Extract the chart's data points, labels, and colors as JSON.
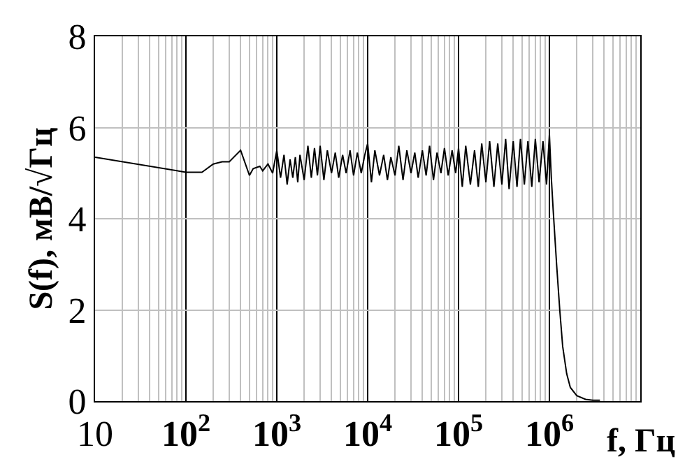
{
  "chart_data": {
    "type": "line",
    "xlabel": "f, Гц",
    "ylabel": "S(f), мВ/√Гц",
    "x": [
      10,
      100,
      150,
      200,
      250,
      300,
      400,
      500,
      550,
      650,
      700,
      800,
      900,
      1000,
      1100,
      1200,
      1300,
      1400,
      1500,
      1600,
      1700,
      1800,
      2000,
      2200,
      2400,
      2600,
      2800,
      3000,
      3300,
      3600,
      4000,
      4400,
      4800,
      5300,
      5800,
      6400,
      7000,
      7700,
      8500,
      9300,
      10000,
      11000,
      12000,
      13500,
      15000,
      16500,
      18000,
      20000,
      22000,
      24500,
      27000,
      30000,
      33000,
      36000,
      40000,
      44000,
      48000,
      53000,
      58000,
      64000,
      70000,
      77000,
      85000,
      93000,
      100000,
      110000,
      120000,
      135000,
      150000,
      165000,
      180000,
      200000,
      220000,
      245000,
      270000,
      300000,
      330000,
      360000,
      400000,
      440000,
      480000,
      530000,
      580000,
      640000,
      700000,
      770000,
      850000,
      930000,
      1000000,
      1050000,
      1100000,
      1200000,
      1300000,
      1400000,
      1550000,
      1700000,
      2000000,
      2500000,
      3000000,
      3600000
    ],
    "series": [
      {
        "color": "#000000",
        "values": [
          5.35,
          5.02,
          5.02,
          5.2,
          5.25,
          5.25,
          5.5,
          4.95,
          5.1,
          5.15,
          5.05,
          5.2,
          5.0,
          5.5,
          4.9,
          5.4,
          4.75,
          5.3,
          4.9,
          5.35,
          4.8,
          5.4,
          4.85,
          5.6,
          4.9,
          5.55,
          4.95,
          5.6,
          4.85,
          5.5,
          5.0,
          5.45,
          4.9,
          5.4,
          5.0,
          5.5,
          4.95,
          5.45,
          5.0,
          5.4,
          5.65,
          4.8,
          5.5,
          4.95,
          5.4,
          4.85,
          5.35,
          4.95,
          5.6,
          4.85,
          5.5,
          5.0,
          5.45,
          4.9,
          5.5,
          4.95,
          5.6,
          4.85,
          5.45,
          5.0,
          5.55,
          4.95,
          5.5,
          5.0,
          5.55,
          4.7,
          5.6,
          4.75,
          5.5,
          4.7,
          5.65,
          4.8,
          5.7,
          4.7,
          5.65,
          4.75,
          5.75,
          4.65,
          5.7,
          4.7,
          5.75,
          4.75,
          5.7,
          4.7,
          5.75,
          4.8,
          5.7,
          4.75,
          5.85,
          4.9,
          4.2,
          3.0,
          2.0,
          1.2,
          0.6,
          0.3,
          0.12,
          0.04,
          0.02,
          0.02
        ]
      }
    ],
    "log": "x",
    "xlim": [
      10,
      10000000
    ],
    "ylim": [
      0,
      8
    ],
    "xticks": [
      10,
      {
        "value": 100,
        "label": "10$^{2}$"
      },
      {
        "value": 1000,
        "label": "10$^{3}$"
      },
      {
        "value": 10000,
        "label": "10$^{4}$"
      },
      {
        "value": 100000,
        "label": "10$^{5}$"
      },
      {
        "value": 1000000,
        "label": "10$^{6}$"
      },
      {
        "value": 10000000,
        "label": null
      }
    ],
    "yticks": [
      0,
      2,
      4,
      6,
      8
    ],
    "grid": true,
    "legend": false,
    "marker": "none",
    "line_style": "solid"
  }
}
